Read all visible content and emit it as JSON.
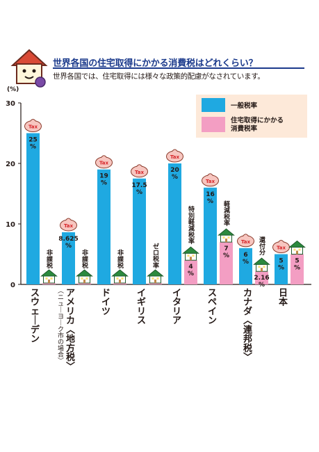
{
  "header": {
    "title": "世界各国の住宅取得にかかる消費税はどれくらい？",
    "subtitle": "世界各国では、住宅取得には様々な政策的配慮がなされています。"
  },
  "colors": {
    "general_tax": "#1fa9e1",
    "housing_tax": "#f39ec3",
    "title": "#1b3a8c",
    "bag": "#f7c6c0",
    "bag_text": "#d7262b",
    "roof": "#2c8a3e",
    "legend_bg": "#fde9d9"
  },
  "chart_data": {
    "type": "bar",
    "y_unit_label": "(%)",
    "ylim": [
      0,
      30
    ],
    "y_ticks": [
      "0",
      "10",
      "20",
      "30"
    ],
    "icon_label": "Tax",
    "categories": [
      {
        "name": "スウェーデン",
        "sub": ""
      },
      {
        "name": "アメリカ〈地方税〉",
        "sub": "（ニューヨーク市の場合）"
      },
      {
        "name": "ドイツ",
        "sub": ""
      },
      {
        "name": "イギリス",
        "sub": ""
      },
      {
        "name": "イタリア",
        "sub": ""
      },
      {
        "name": "スペイン",
        "sub": ""
      },
      {
        "name": "カナダ〈連邦税〉",
        "sub": ""
      },
      {
        "name": "日本",
        "sub": ""
      }
    ],
    "series": [
      {
        "name": "一般税率",
        "values": [
          25,
          8.625,
          19,
          17.5,
          20,
          16,
          6,
          5
        ],
        "labels": [
          "25\n%",
          "8.625\n%",
          "19\n%",
          "17.5\n%",
          "20\n%",
          "16\n%",
          "6\n%",
          "5\n%"
        ]
      },
      {
        "name": "住宅取得にかかる\n消費税率",
        "values": [
          0,
          0,
          0,
          0,
          4,
          7,
          2.16,
          5
        ],
        "labels": [
          "",
          "",
          "",
          "",
          "4\n%",
          "7\n%",
          "2.16\n%",
          "5\n%"
        ]
      }
    ],
    "annotations": [
      "非課税",
      "非課税",
      "非課税",
      "ゼロ税率",
      "特別軽減税率",
      "軽減税率",
      "還付分",
      ""
    ]
  }
}
